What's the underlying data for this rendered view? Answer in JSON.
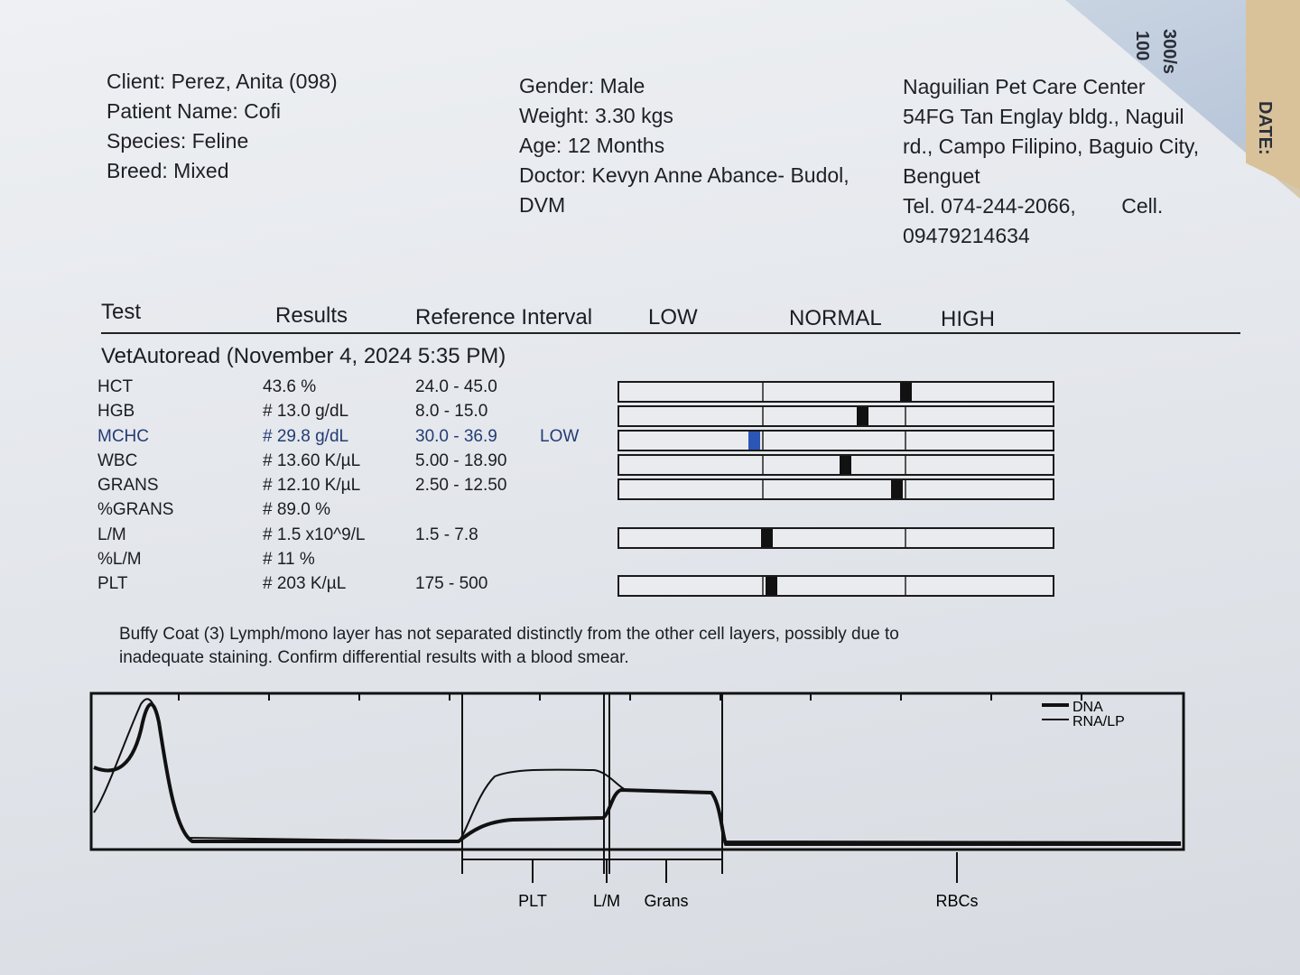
{
  "header": {
    "client": "Client: Perez, Anita (098)",
    "patient": "Patient Name: Cofi",
    "species": "Species: Feline",
    "breed": "Breed: Mixed",
    "gender": "Gender: Male",
    "weight": "Weight: 3.30 kgs",
    "age": "Age: 12 Months",
    "doctor_line1": "Doctor: Kevyn Anne Abance- Budol,",
    "doctor_line2": "DVM",
    "clinic_name": "Naguilian Pet Care Center",
    "clinic_addr1": "54FG Tan Englay bldg., Naguil",
    "clinic_addr2": "rd., Campo Filipino, Baguio City,",
    "clinic_addr3": "Benguet",
    "clinic_tel": "Tel. 074-244-2066,",
    "clinic_cell_label": "Cell.",
    "clinic_cell": "09479214634"
  },
  "corner": {
    "label_date": "DATE:",
    "label_300": "300/s",
    "label_100": "100"
  },
  "table_header": {
    "test": "Test",
    "results": "Results",
    "reference": "Reference Interval",
    "low": "LOW",
    "normal": "NORMAL",
    "high": "HIGH"
  },
  "section_title": "VetAutoread (November 4, 2024 5:35 PM)",
  "rows": [
    {
      "test": "HCT",
      "result": "43.6 %",
      "ref": "24.0 - 45.0",
      "flag": "",
      "marker": 0.66,
      "status": "normal"
    },
    {
      "test": "HGB",
      "result": "# 13.0 g/dL",
      "ref": "8.0 - 15.0",
      "flag": "",
      "marker": 0.56,
      "status": "normal"
    },
    {
      "test": "MCHC",
      "result": "# 29.8 g/dL",
      "ref": "30.0 - 36.9",
      "flag": "LOW",
      "marker": 0.31,
      "status": "low"
    },
    {
      "test": "WBC",
      "result": "# 13.60 K/µL",
      "ref": "5.00 - 18.90",
      "flag": "",
      "marker": 0.52,
      "status": "normal"
    },
    {
      "test": "GRANS",
      "result": "# 12.10 K/µL",
      "ref": "2.50 - 12.50",
      "flag": "",
      "marker": 0.64,
      "status": "normal"
    },
    {
      "test": "%GRANS",
      "result": "# 89.0 %",
      "ref": "",
      "flag": ""
    },
    {
      "test": "L/M",
      "result": "# 1.5 x10^9/L",
      "ref": "1.5 - 7.8",
      "flag": "",
      "marker": 0.34,
      "status": "normal"
    },
    {
      "test": "%L/M",
      "result": "# 11 %",
      "ref": "",
      "flag": ""
    },
    {
      "test": "PLT",
      "result": "# 203 K/µL",
      "ref": "175 - 500",
      "flag": "",
      "marker": 0.35,
      "status": "normal"
    }
  ],
  "note_line1": "Buffy Coat (3)  Lymph/mono layer has not separated distinctly from the other cell  layers, possibly due to",
  "note_line2": "inadequate staining.  Confirm differential  results with a blood smear.",
  "histogram": {
    "legend": [
      "DNA",
      "RNA/LP"
    ],
    "zone_labels": [
      "PLT",
      "L/M",
      "Grans",
      "RBCs"
    ]
  }
}
